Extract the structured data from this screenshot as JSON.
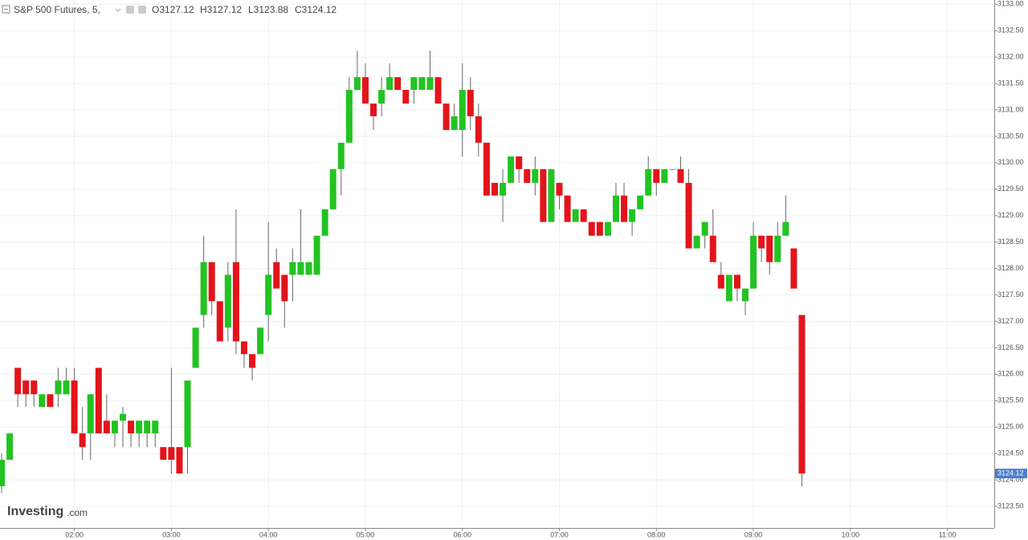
{
  "chart_data": {
    "type": "candlestick",
    "title": "S&P 500 Futures, 5,",
    "ohlc_labels": [
      "O3127.12",
      "H3127.12",
      "L3123.88",
      "C3124.12"
    ],
    "watermark": [
      "Investing",
      ".com"
    ],
    "last_price": 3124.12,
    "up_color": "#22c322",
    "down_color": "#e3141a",
    "grid": true,
    "x": [
      "01:15",
      "01:20",
      "01:25",
      "01:30",
      "01:35",
      "01:40",
      "01:45",
      "01:50",
      "01:55",
      "02:00",
      "02:05",
      "02:10",
      "02:15",
      "02:20",
      "02:25",
      "02:30",
      "02:35",
      "02:40",
      "02:45",
      "02:50",
      "02:55",
      "03:00",
      "03:05",
      "03:10",
      "03:15",
      "03:20",
      "03:25",
      "03:30",
      "03:35",
      "03:40",
      "03:45",
      "03:50",
      "03:55",
      "04:00",
      "04:05",
      "04:10",
      "04:15",
      "04:20",
      "04:25",
      "04:30",
      "04:35",
      "04:40",
      "04:45",
      "04:50",
      "04:55",
      "05:00",
      "05:05",
      "05:10",
      "05:15",
      "05:20",
      "05:25",
      "05:30",
      "05:35",
      "05:40",
      "05:45",
      "05:50",
      "05:55",
      "06:00",
      "06:05",
      "06:10",
      "06:15",
      "06:20",
      "06:25",
      "06:30",
      "06:35",
      "06:40",
      "06:45",
      "06:50",
      "06:55",
      "07:00",
      "07:05",
      "07:10",
      "07:15",
      "07:20",
      "07:25",
      "07:30",
      "07:35",
      "07:40",
      "07:45",
      "07:50",
      "07:55",
      "08:00",
      "08:05",
      "08:10",
      "08:15",
      "08:20",
      "08:25",
      "08:30",
      "08:35",
      "08:40",
      "08:45",
      "08:50",
      "08:55",
      "09:00",
      "09:05",
      "09:10",
      "09:15",
      "09:20",
      "09:25",
      "09:30"
    ],
    "open": [
      3123.88,
      3124.38,
      3126.12,
      3125.88,
      3125.88,
      3125.38,
      3125.62,
      3125.62,
      3125.62,
      3125.88,
      3124.88,
      3124.88,
      3126.12,
      3125.12,
      3124.88,
      3125.12,
      3125.12,
      3124.88,
      3124.88,
      3124.88,
      3124.62,
      3124.62,
      3124.62,
      3124.62,
      3126.12,
      3127.12,
      3128.12,
      3127.38,
      3126.88,
      3128.12,
      3126.62,
      3126.38,
      3126.38,
      3127.12,
      3128.12,
      3127.88,
      3127.88,
      3127.88,
      3127.88,
      3127.88,
      3128.62,
      3129.12,
      3129.88,
      3130.38,
      3131.38,
      3131.62,
      3131.12,
      3131.12,
      3131.38,
      3131.62,
      3131.38,
      3131.38,
      3131.38,
      3131.38,
      3131.62,
      3131.12,
      3130.62,
      3130.62,
      3131.38,
      3130.88,
      3130.38,
      3129.62,
      3129.38,
      3129.62,
      3130.12,
      3129.88,
      3129.62,
      3129.88,
      3128.88,
      3129.62,
      3129.38,
      3128.88,
      3129.12,
      3128.88,
      3128.88,
      3128.62,
      3128.88,
      3129.38,
      3128.88,
      3129.12,
      3129.38,
      3129.88,
      3129.62,
      3129.88,
      3129.88,
      3129.62,
      3128.38,
      3128.62,
      3128.62,
      3127.88,
      3127.38,
      3127.88,
      3127.38,
      3127.62,
      3128.62,
      3128.62,
      3128.12,
      3128.62,
      3128.38,
      3127.12
    ],
    "high": [
      3124.5,
      3124.88,
      3126.12,
      3125.88,
      3125.88,
      3125.62,
      3125.62,
      3126.12,
      3126.12,
      3126.12,
      3125.38,
      3125.62,
      3126.12,
      3125.62,
      3125.12,
      3125.38,
      3125.12,
      3125.12,
      3125.12,
      3125.12,
      3124.62,
      3126.12,
      3124.62,
      3125.88,
      3126.88,
      3128.62,
      3128.12,
      3127.38,
      3128.12,
      3129.12,
      3126.62,
      3126.38,
      3126.88,
      3128.88,
      3128.38,
      3127.88,
      3128.38,
      3129.12,
      3128.12,
      3128.62,
      3129.12,
      3129.88,
      3130.38,
      3131.62,
      3132.12,
      3131.88,
      3131.12,
      3131.62,
      3131.88,
      3131.62,
      3131.38,
      3131.62,
      3131.62,
      3132.12,
      3131.62,
      3131.12,
      3131.12,
      3131.88,
      3131.62,
      3131.12,
      3130.38,
      3129.62,
      3129.88,
      3130.12,
      3130.12,
      3129.88,
      3130.12,
      3129.88,
      3129.88,
      3129.62,
      3129.38,
      3129.12,
      3129.12,
      3128.88,
      3128.88,
      3128.88,
      3129.62,
      3129.62,
      3129.12,
      3129.38,
      3130.12,
      3129.88,
      3129.88,
      3129.88,
      3130.12,
      3129.88,
      3128.62,
      3128.88,
      3129.12,
      3128.12,
      3127.88,
      3127.88,
      3127.62,
      3128.88,
      3128.62,
      3128.62,
      3128.88,
      3129.38,
      3128.38,
      3127.12
    ],
    "low": [
      3123.75,
      3124.38,
      3125.38,
      3125.38,
      3125.38,
      3125.38,
      3125.38,
      3125.38,
      3125.62,
      3124.88,
      3124.38,
      3124.38,
      3124.88,
      3124.88,
      3124.62,
      3124.62,
      3124.62,
      3124.62,
      3124.62,
      3124.62,
      3124.38,
      3124.12,
      3124.12,
      3124.12,
      3126.12,
      3126.88,
      3127.12,
      3126.62,
      3126.62,
      3126.38,
      3126.12,
      3125.88,
      3126.38,
      3126.62,
      3127.62,
      3126.88,
      3127.38,
      3127.88,
      3127.88,
      3127.88,
      3128.62,
      3129.12,
      3129.38,
      3130.38,
      3131.38,
      3131.12,
      3130.62,
      3130.88,
      3131.38,
      3131.38,
      3131.12,
      3131.12,
      3131.38,
      3131.38,
      3131.12,
      3130.62,
      3130.62,
      3130.12,
      3130.62,
      3130.12,
      3129.38,
      3129.38,
      3128.88,
      3129.62,
      3129.62,
      3129.62,
      3129.38,
      3128.88,
      3128.88,
      3129.12,
      3128.88,
      3128.88,
      3128.88,
      3128.62,
      3128.62,
      3128.62,
      3128.88,
      3128.88,
      3128.62,
      3129.12,
      3129.38,
      3129.38,
      3129.62,
      3129.88,
      3129.62,
      3128.38,
      3128.38,
      3128.38,
      3128.12,
      3127.62,
      3127.38,
      3127.38,
      3127.12,
      3127.62,
      3128.12,
      3127.88,
      3128.12,
      3128.62,
      3127.62,
      3123.88
    ],
    "close": [
      3124.38,
      3124.88,
      3125.62,
      3125.62,
      3125.62,
      3125.62,
      3125.38,
      3125.88,
      3125.88,
      3124.88,
      3124.62,
      3125.62,
      3124.88,
      3124.88,
      3125.12,
      3125.25,
      3124.88,
      3125.12,
      3125.12,
      3125.12,
      3124.38,
      3124.38,
      3124.12,
      3125.88,
      3126.88,
      3128.12,
      3127.38,
      3126.62,
      3127.88,
      3126.62,
      3126.38,
      3126.12,
      3126.88,
      3127.88,
      3127.62,
      3127.38,
      3128.12,
      3128.12,
      3128.12,
      3128.62,
      3129.12,
      3129.88,
      3130.38,
      3131.38,
      3131.62,
      3131.12,
      3130.88,
      3131.38,
      3131.62,
      3131.38,
      3131.12,
      3131.62,
      3131.62,
      3131.62,
      3131.12,
      3130.62,
      3130.88,
      3131.38,
      3130.88,
      3130.38,
      3129.38,
      3129.38,
      3129.62,
      3130.12,
      3129.88,
      3129.62,
      3129.88,
      3128.88,
      3129.88,
      3129.38,
      3128.88,
      3129.12,
      3128.88,
      3128.62,
      3128.62,
      3128.88,
      3129.38,
      3128.88,
      3129.12,
      3129.38,
      3129.88,
      3129.62,
      3129.88,
      3129.88,
      3129.62,
      3128.38,
      3128.62,
      3128.88,
      3128.12,
      3127.62,
      3127.88,
      3127.62,
      3127.62,
      3128.62,
      3128.38,
      3128.12,
      3128.62,
      3128.88,
      3127.62,
      3124.12
    ],
    "xlim": [
      "01:14",
      "11:29"
    ],
    "xticks": [
      "02:00",
      "03:00",
      "04:00",
      "05:00",
      "06:00",
      "07:00",
      "08:00",
      "09:00",
      "10:00",
      "11:00"
    ],
    "ylim": [
      3123.09,
      3133.08
    ],
    "yticks": [
      {
        "value": 3123.5,
        "label": "3123.50"
      },
      {
        "value": 3124,
        "label": "3124.00"
      },
      {
        "value": 3124.5,
        "label": "3124.50"
      },
      {
        "value": 3125,
        "label": "3125.00"
      },
      {
        "value": 3125.5,
        "label": "3125.50"
      },
      {
        "value": 3126,
        "label": "3126.00"
      },
      {
        "value": 3126.5,
        "label": "3126.50"
      },
      {
        "value": 3127,
        "label": "3127.00"
      },
      {
        "value": 3127.5,
        "label": "3127.50"
      },
      {
        "value": 3128,
        "label": "3128.00"
      },
      {
        "value": 3128.5,
        "label": "3128.50"
      },
      {
        "value": 3129,
        "label": "3129.00"
      },
      {
        "value": 3129.5,
        "label": "3129.50"
      },
      {
        "value": 3130,
        "label": "3130.00"
      },
      {
        "value": 3130.5,
        "label": "3130.50"
      },
      {
        "value": 3131,
        "label": "3131.00"
      },
      {
        "value": 3131.5,
        "label": "3131.50"
      },
      {
        "value": 3132,
        "label": "3132.00"
      },
      {
        "value": 3132.5,
        "label": "3132.50"
      },
      {
        "value": 3133,
        "label": "3133.00"
      }
    ]
  }
}
